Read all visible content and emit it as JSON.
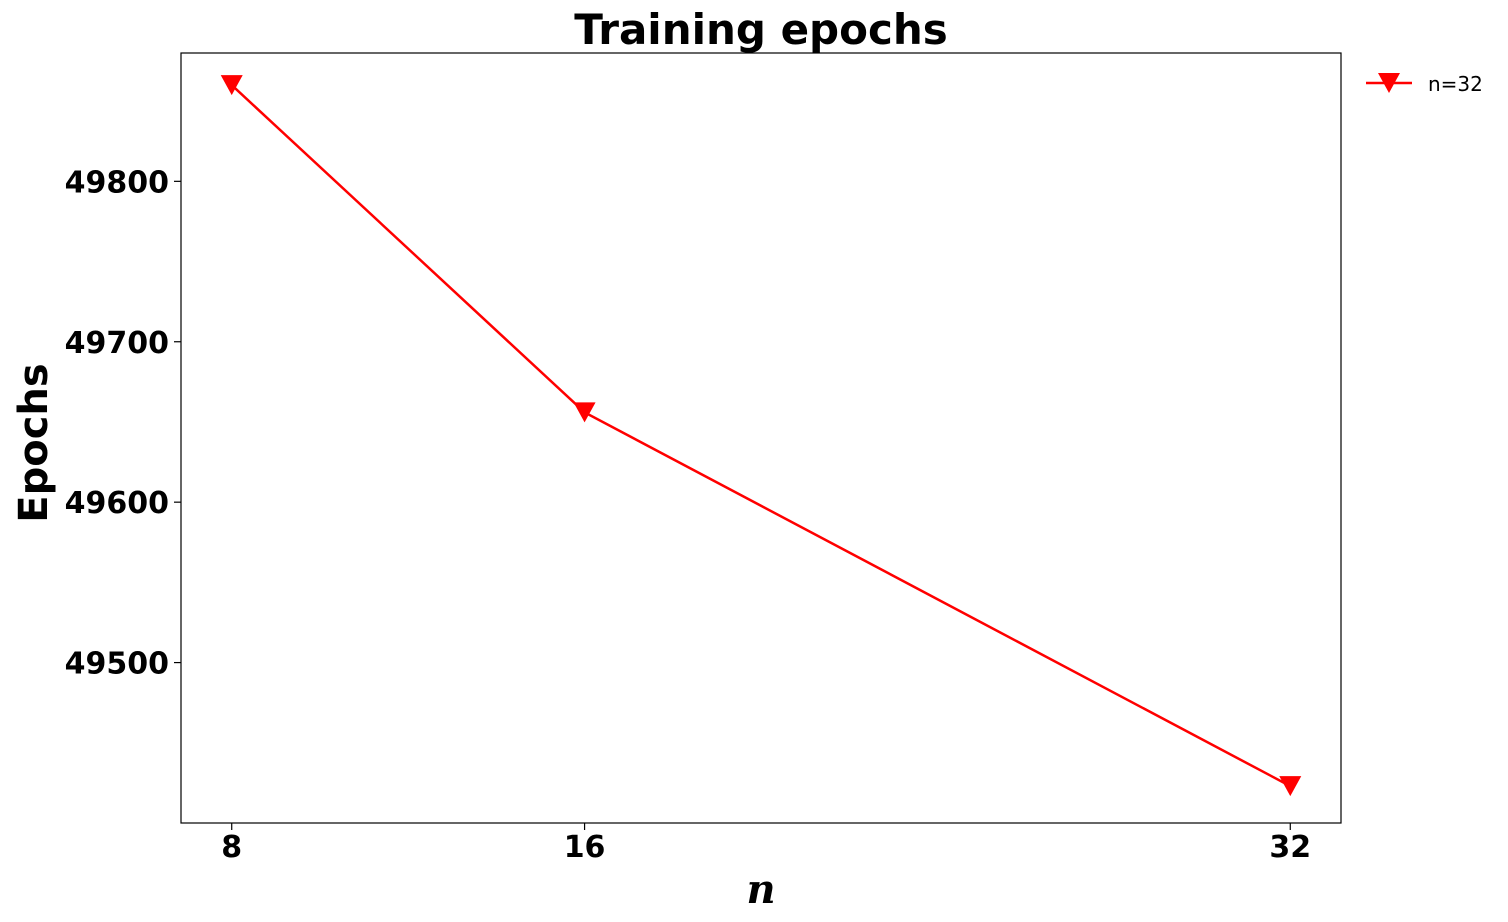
{
  "chart_data": {
    "type": "line",
    "title": "Training epochs",
    "xlabel": "n",
    "ylabel": "Epochs",
    "x": [
      8,
      16,
      32
    ],
    "x_tick_labels": [
      "8",
      "16",
      "32"
    ],
    "y_ticks": [
      49500,
      49600,
      49700,
      49800
    ],
    "y_tick_labels": [
      "49500",
      "49600",
      "49700",
      "49800"
    ],
    "xlim": [
      6.85,
      33.15
    ],
    "ylim": [
      49400,
      49880
    ],
    "grid": false,
    "legend_position": "outside-top-right",
    "series": [
      {
        "name": "n=32",
        "values": [
          49860,
          49656,
          49423
        ],
        "color": "#ff0000",
        "marker": "triangle-down"
      }
    ]
  }
}
